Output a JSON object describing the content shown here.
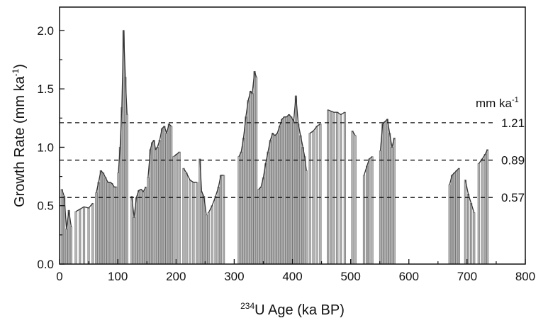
{
  "chart_data": {
    "type": "bar",
    "title": "",
    "xlabel": {
      "sup": "234",
      "text": "U Age (ka BP)"
    },
    "ylabel": {
      "text": "Growth Rate (mm ka",
      "sup": "-1",
      "close": ")"
    },
    "xlim": [
      0,
      800
    ],
    "ylim": [
      0,
      2.2
    ],
    "xticks": [
      "0",
      "100",
      "200",
      "300",
      "400",
      "500",
      "600",
      "700",
      "800"
    ],
    "yticks": [
      "0.0",
      "0.5",
      "1.0",
      "1.5",
      "2.0"
    ],
    "grid": false,
    "unit_label": {
      "text": "mm ka",
      "sup": "-1"
    },
    "reference_lines": [
      {
        "y": 1.21,
        "label": "1.21"
      },
      {
        "y": 0.89,
        "label": "0.89"
      },
      {
        "y": 0.57,
        "label": "0.57"
      }
    ],
    "bar_color": "#b4b4b4",
    "bar_edge_color": "#6e6e6e",
    "line_color": "#333333",
    "segments": [
      {
        "x": [
          4,
          8,
          12,
          16,
          20
        ],
        "y": [
          0.64,
          0.58,
          0.3,
          0.46,
          0.32
        ]
      },
      {
        "x": [
          28,
          35,
          42,
          50,
          57
        ],
        "y": [
          0.45,
          0.47,
          0.49,
          0.48,
          0.52
        ]
      },
      {
        "x": [
          63,
          67,
          71,
          75,
          79,
          83,
          87,
          90,
          94,
          98
        ],
        "y": [
          0.61,
          0.7,
          0.8,
          0.78,
          0.74,
          0.7,
          0.7,
          0.69,
          0.66,
          0.66
        ]
      },
      {
        "x": [
          101,
          104,
          107,
          110,
          113,
          116
        ],
        "y": [
          0.78,
          1.0,
          1.34,
          2.0,
          1.6,
          1.28
        ]
      },
      {
        "x": [
          124,
          128,
          132,
          136,
          140,
          144,
          148
        ],
        "y": [
          0.58,
          0.4,
          0.57,
          0.63,
          0.64,
          0.62,
          0.66
        ]
      },
      {
        "x": [
          152,
          156,
          159,
          162,
          165,
          168,
          172,
          176,
          180,
          184,
          188,
          192
        ],
        "y": [
          0.74,
          0.98,
          1.04,
          1.06,
          0.98,
          1.0,
          1.06,
          1.16,
          1.18,
          1.12,
          1.2,
          1.18
        ]
      },
      {
        "x": [
          196,
          201,
          206
        ],
        "y": [
          0.92,
          0.94,
          0.96
        ]
      },
      {
        "x": [
          213,
          218,
          224,
          230,
          236
        ],
        "y": [
          0.82,
          0.78,
          0.72,
          0.7,
          0.7
        ]
      },
      {
        "x": [
          241,
          244,
          248,
          252
        ],
        "y": [
          0.9,
          0.62,
          0.58,
          0.42
        ]
      },
      {
        "x": [
          256,
          262,
          268,
          273,
          277,
          282
        ],
        "y": [
          0.44,
          0.5,
          0.58,
          0.66,
          0.76,
          0.76
        ]
      },
      {
        "x": [
          308,
          312,
          316,
          320,
          324,
          328,
          331,
          335,
          338
        ],
        "y": [
          0.92,
          0.96,
          1.08,
          1.26,
          1.4,
          1.48,
          1.46,
          1.65,
          1.6
        ]
      },
      {
        "x": [
          342,
          346,
          350,
          354,
          358,
          362,
          366,
          370,
          374,
          378,
          382,
          386,
          390,
          394,
          398,
          402,
          406,
          410,
          414,
          418,
          421,
          424
        ],
        "y": [
          0.64,
          0.66,
          0.74,
          0.86,
          0.96,
          1.06,
          1.12,
          1.1,
          1.12,
          1.18,
          1.24,
          1.26,
          1.26,
          1.28,
          1.26,
          1.22,
          1.44,
          1.2,
          1.1,
          1.0,
          0.92,
          0.8
        ]
      },
      {
        "x": [
          430,
          436,
          442,
          448
        ],
        "y": [
          1.12,
          1.14,
          1.18,
          1.2
        ]
      },
      {
        "x": [
          461,
          466,
          471,
          477,
          483,
          490
        ],
        "y": [
          1.32,
          1.31,
          1.3,
          1.3,
          1.28,
          1.3
        ]
      },
      {
        "x": [
          503,
          508
        ],
        "y": [
          1.14,
          1.1
        ]
      },
      {
        "x": [
          523,
          528,
          532,
          537
        ],
        "y": [
          0.76,
          0.84,
          0.9,
          0.92
        ]
      },
      {
        "x": [
          551,
          555,
          559,
          563,
          567,
          571,
          575
        ],
        "y": [
          0.97,
          1.2,
          1.22,
          1.24,
          1.12,
          1.0,
          1.08
        ]
      },
      {
        "x": [
          670,
          674,
          678,
          682,
          686
        ],
        "y": [
          0.68,
          0.76,
          0.78,
          0.8,
          0.82
        ]
      },
      {
        "x": [
          697,
          702,
          707,
          712
        ],
        "y": [
          0.72,
          0.6,
          0.52,
          0.44
        ]
      },
      {
        "x": [
          720,
          726,
          731,
          735
        ],
        "y": [
          0.86,
          0.9,
          0.94,
          0.98
        ]
      }
    ]
  }
}
